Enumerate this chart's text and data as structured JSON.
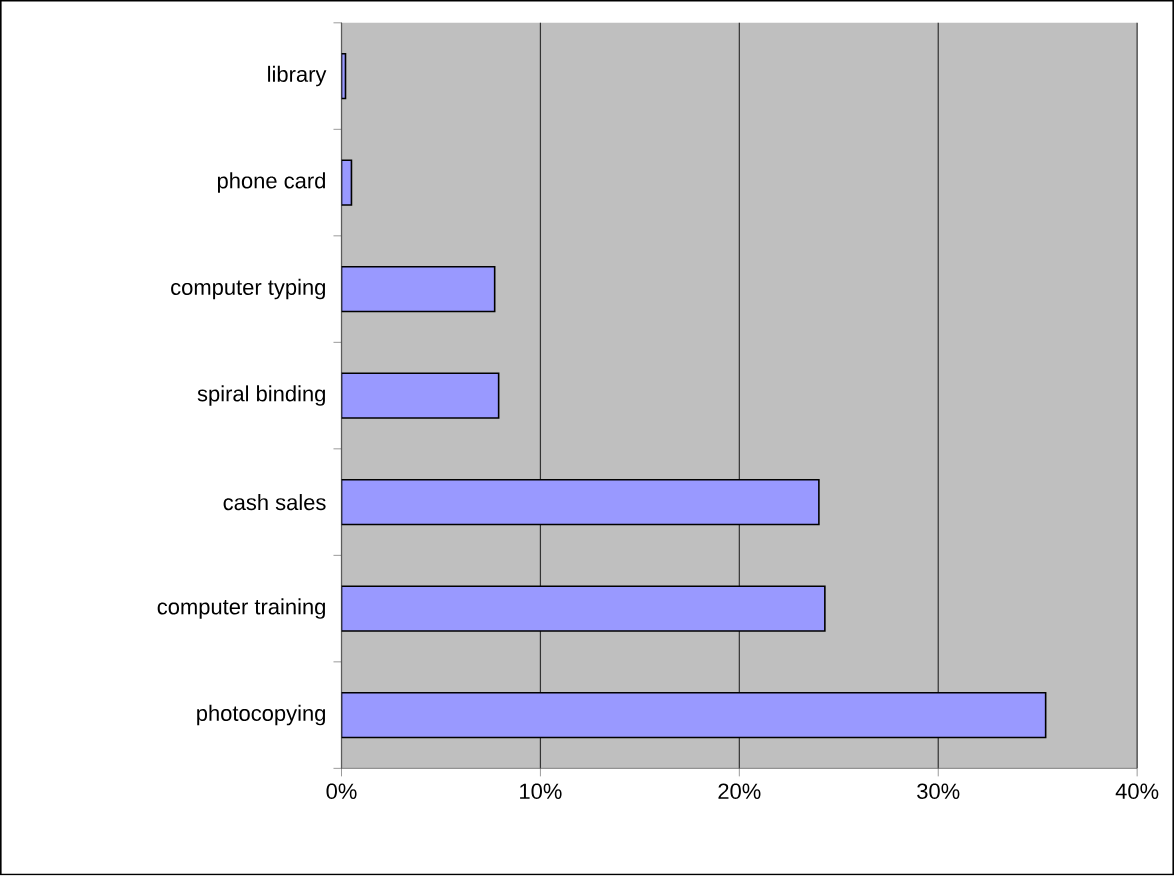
{
  "chart_data": {
    "type": "bar",
    "orientation": "horizontal",
    "categories": [
      "library",
      "phone card",
      "computer typing",
      "spiral binding",
      "cash sales",
      "computer training",
      "photocopying"
    ],
    "values": [
      0.2,
      0.5,
      7.7,
      7.9,
      24.0,
      24.3,
      35.4
    ],
    "color": "#9999ff",
    "xlim": [
      0,
      40
    ],
    "xticks": [
      {
        "value": 0,
        "label": "0%"
      },
      {
        "value": 10,
        "label": "10%"
      },
      {
        "value": 20,
        "label": "20%"
      },
      {
        "value": 30,
        "label": "30%"
      },
      {
        "value": 40,
        "label": "40%"
      }
    ],
    "grid": "x"
  }
}
